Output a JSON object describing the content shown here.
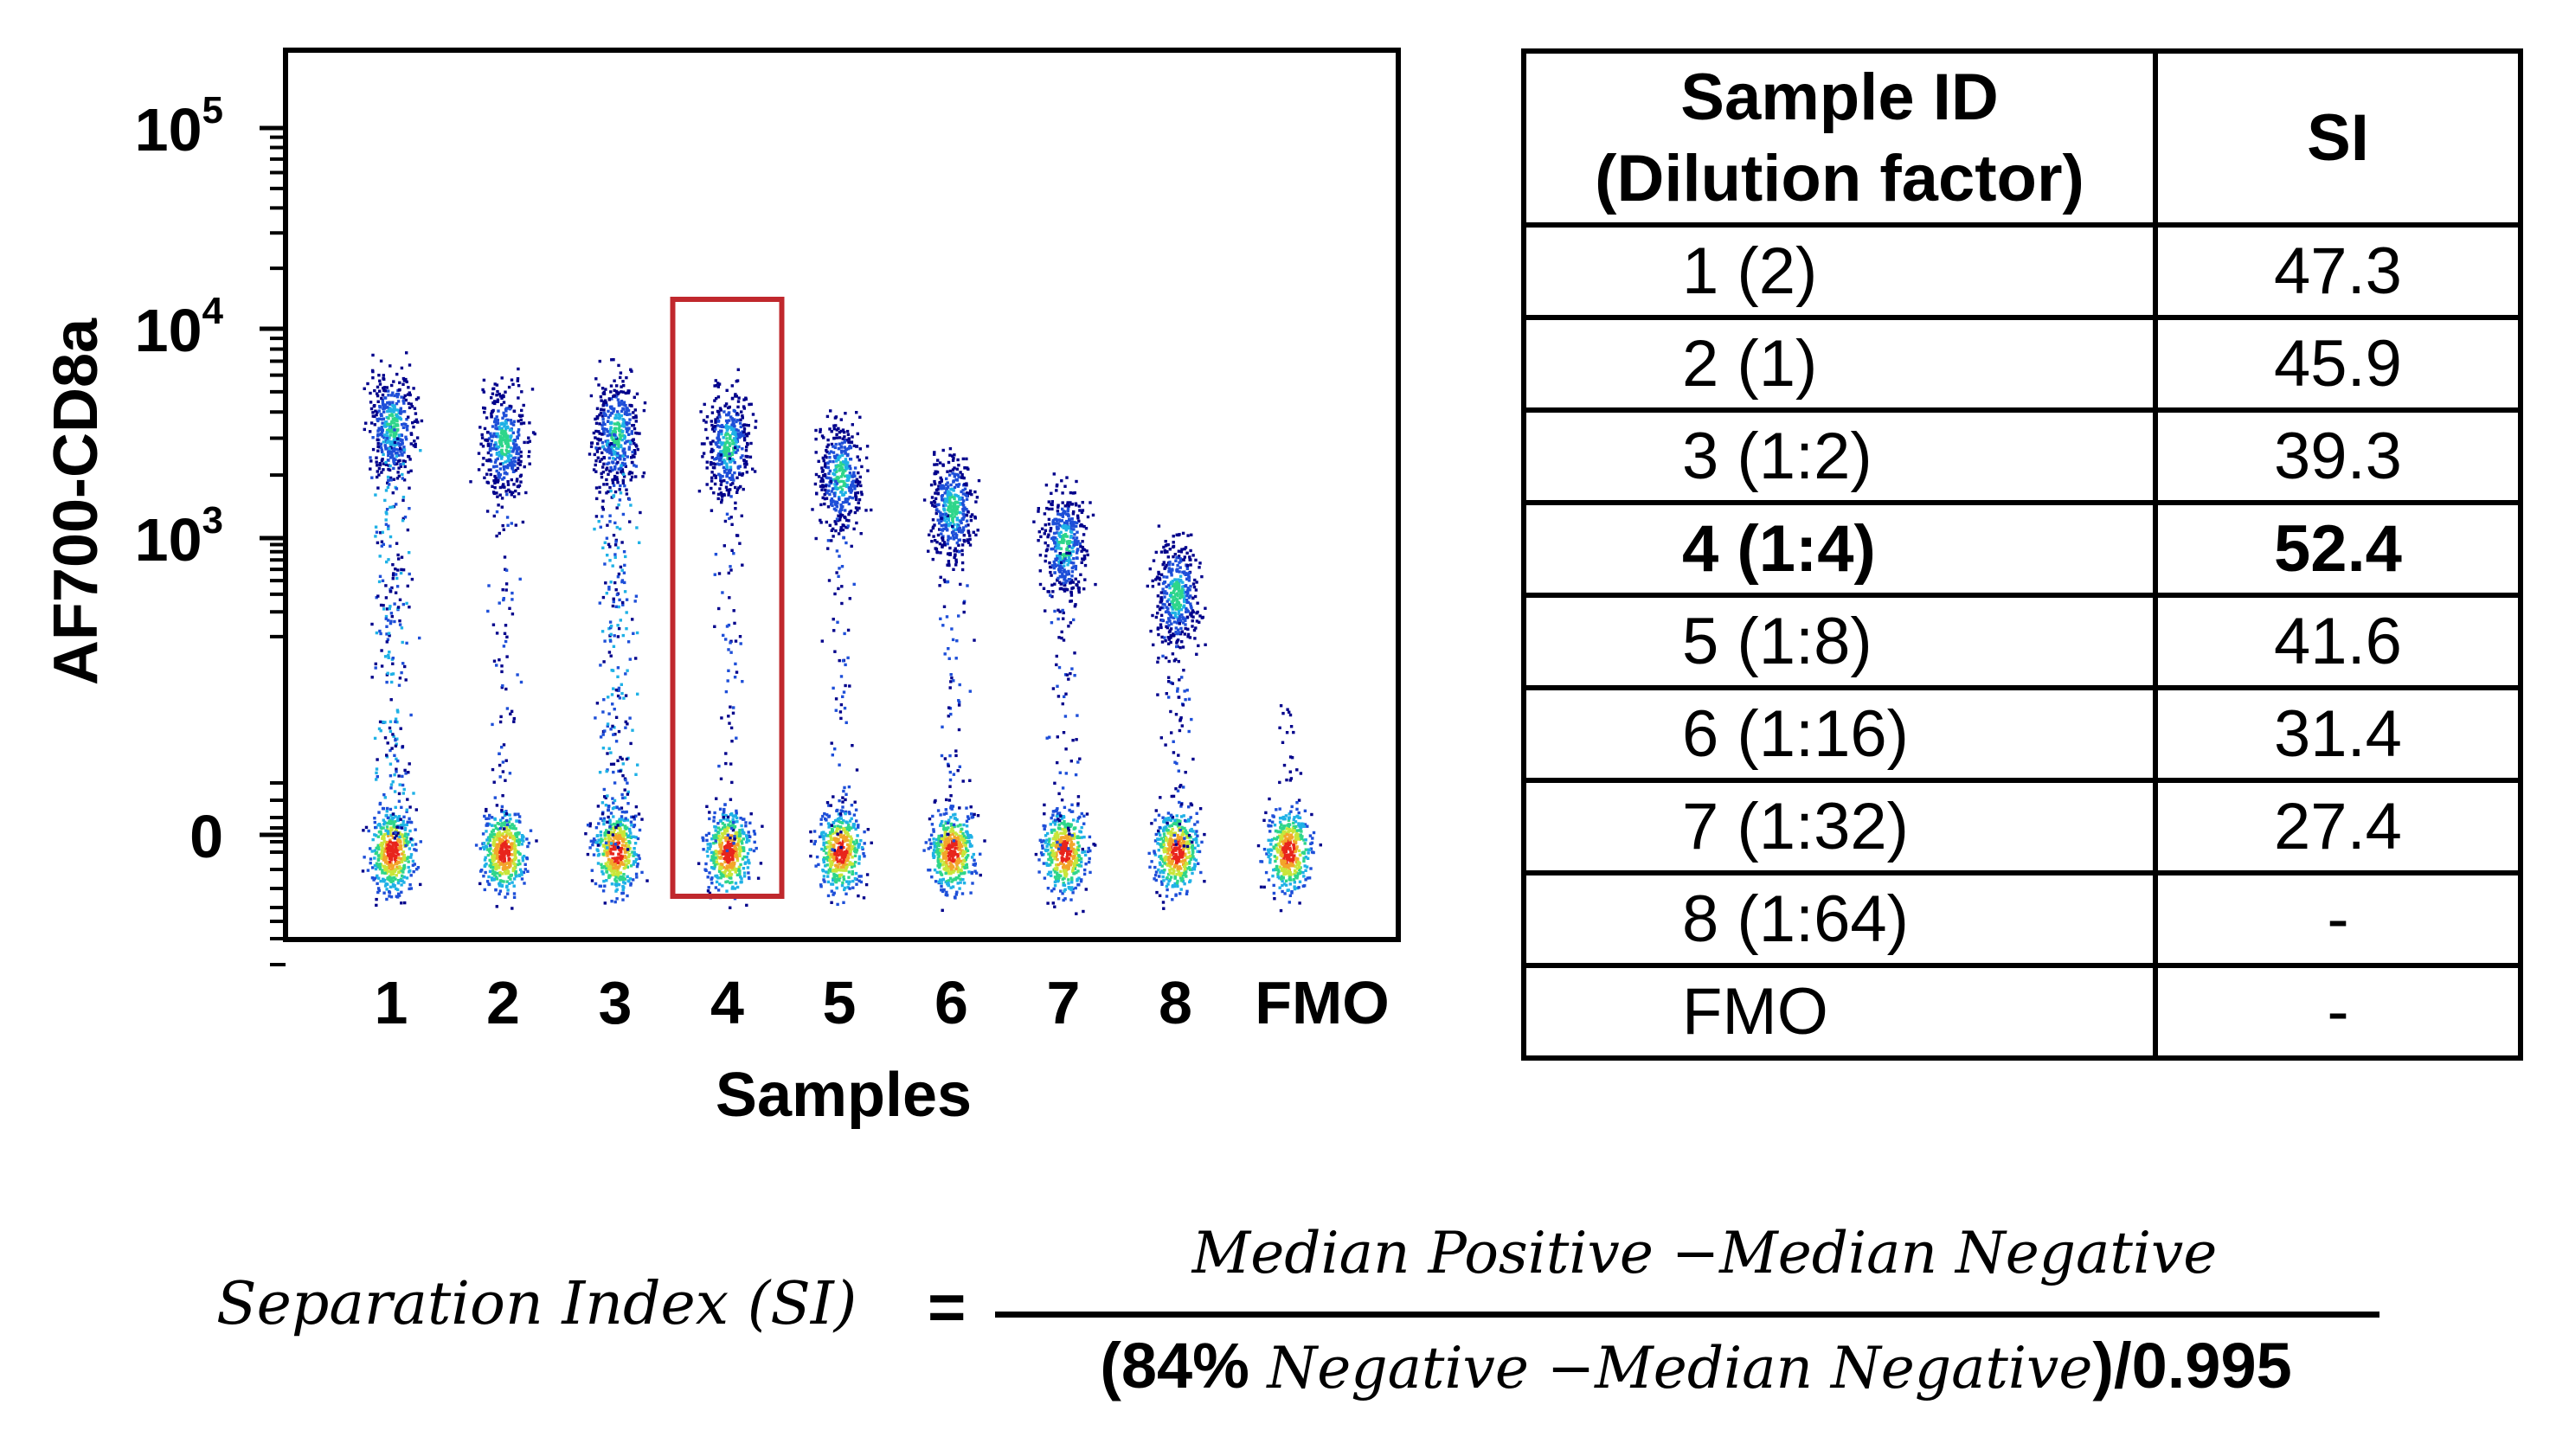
{
  "chart_data": [
    {
      "type": "scatter",
      "title": "",
      "xlabel": "Samples",
      "ylabel": "AF700-CD8a",
      "yscale": "biexponential",
      "categories": [
        "1",
        "2",
        "3",
        "4",
        "5",
        "6",
        "7",
        "8",
        "FMO"
      ],
      "y_ticks": [
        {
          "base": "0",
          "exp": ""
        },
        {
          "base": "10",
          "exp": "3"
        },
        {
          "base": "10",
          "exp": "4"
        },
        {
          "base": "10",
          "exp": "5"
        }
      ],
      "highlighted_category": "4",
      "highlight_color": "#c0282d",
      "series": [
        {
          "category": "1",
          "positive_median": 3500,
          "negative_median": 0,
          "has_intermediate": true
        },
        {
          "category": "2",
          "positive_median": 2900,
          "negative_median": 0,
          "has_intermediate": false
        },
        {
          "category": "3",
          "positive_median": 3200,
          "negative_median": 0,
          "has_intermediate": true
        },
        {
          "category": "4",
          "positive_median": 2800,
          "negative_median": 0,
          "has_intermediate": false
        },
        {
          "category": "5",
          "positive_median": 2000,
          "negative_median": 0,
          "has_intermediate": false
        },
        {
          "category": "6",
          "positive_median": 1400,
          "negative_median": 0,
          "has_intermediate": false
        },
        {
          "category": "7",
          "positive_median": 900,
          "negative_median": 0,
          "has_intermediate": false
        },
        {
          "category": "8",
          "positive_median": 400,
          "negative_median": 0,
          "has_intermediate": false
        },
        {
          "category": "FMO",
          "positive_median": null,
          "negative_median": 0,
          "has_intermediate": false
        }
      ],
      "density_colors": [
        "#00008b",
        "#1e4fd8",
        "#1fb1e6",
        "#2ed68a",
        "#c8e63a",
        "#f3a52a",
        "#e8251c"
      ]
    },
    {
      "type": "table",
      "columns": [
        "Sample ID\n(Dilution factor)",
        "SI"
      ],
      "rows": [
        {
          "sample": "1 (2)",
          "si": "47.3",
          "highlight": false
        },
        {
          "sample": "2 (1)",
          "si": "45.9",
          "highlight": false
        },
        {
          "sample": "3 (1:2)",
          "si": "39.3",
          "highlight": false
        },
        {
          "sample": "4 (1:4)",
          "si": "52.4",
          "highlight": true
        },
        {
          "sample": "5 (1:8)",
          "si": "41.6",
          "highlight": false
        },
        {
          "sample": "6 (1:16)",
          "si": "31.4",
          "highlight": false
        },
        {
          "sample": "7 (1:32)",
          "si": "27.4",
          "highlight": false
        },
        {
          "sample": "8 (1:64)",
          "si": "-",
          "highlight": false
        },
        {
          "sample": "FMO",
          "si": "-",
          "highlight": false
        }
      ]
    }
  ],
  "table": {
    "header_sample_line1": "Sample ID",
    "header_sample_line2": "(Dilution factor)",
    "header_si": "SI"
  },
  "formula": {
    "lhs": "Separation Index (SI)",
    "equals": "=",
    "numerator": "Median Positive −Median Negative",
    "denominator_open": "(84% ",
    "denominator_term": "Negative −Median Negative",
    "denominator_close": ")/0.995"
  }
}
